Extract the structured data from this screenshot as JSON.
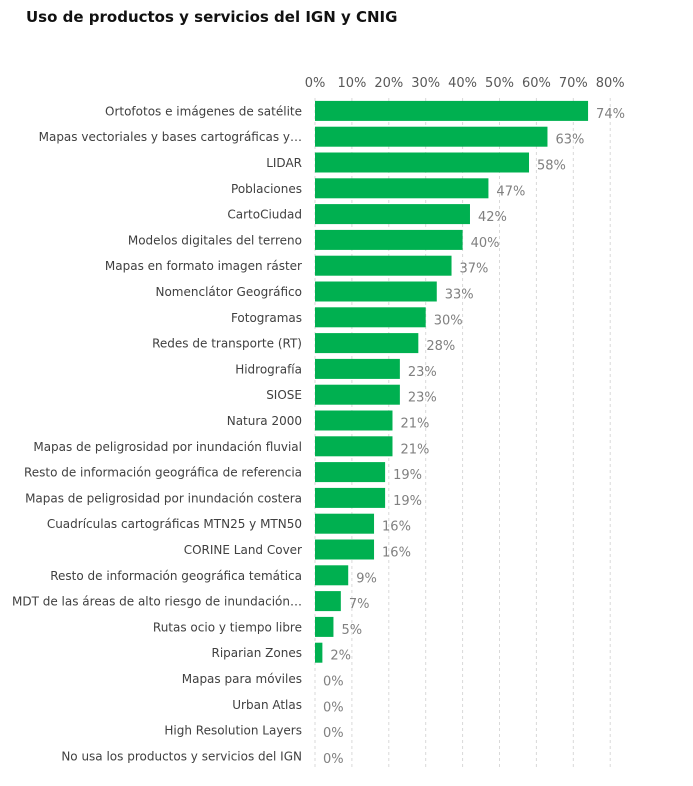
{
  "chart_data": {
    "type": "bar",
    "orientation": "horizontal",
    "title": "Uso de productos y servicios del IGN y CNIG",
    "xlim": [
      0,
      80
    ],
    "ticks": [
      "0%",
      "10%",
      "20%",
      "30%",
      "40%",
      "50%",
      "60%",
      "70%",
      "80%"
    ],
    "tick_values": [
      0,
      10,
      20,
      30,
      40,
      50,
      60,
      70,
      80
    ],
    "grid": true,
    "axis_position": "top",
    "bar_color": "#00b050",
    "categories": [
      "Ortofotos e imágenes de satélite",
      "Mapas vectoriales y bases cartográficas y…",
      "LIDAR",
      "Poblaciones",
      "CartoCiudad",
      "Modelos digitales del terreno",
      "Mapas en formato imagen ráster",
      "Nomenclátor Geográfico",
      "Fotogramas",
      "Redes de transporte (RT)",
      "Hidrografía",
      "SIOSE",
      "Natura 2000",
      "Mapas de peligrosidad por inundación fluvial",
      "Resto de información geográfica de referencia",
      "Mapas de peligrosidad por inundación costera",
      "Cuadrículas cartográficas MTN25 y MTN50",
      "CORINE Land Cover",
      "Resto de información geográfica temática",
      "MDT de las áreas de alto riesgo de inundación…",
      "Rutas ocio y tiempo libre",
      "Riparian Zones",
      "Mapas para móviles",
      "Urban Atlas",
      "High Resolution Layers",
      "No usa los productos y servicios del IGN"
    ],
    "values": [
      74,
      63,
      58,
      47,
      42,
      40,
      37,
      33,
      30,
      28,
      23,
      23,
      21,
      21,
      19,
      19,
      16,
      16,
      9,
      7,
      5,
      2,
      0,
      0,
      0,
      0
    ],
    "value_labels": [
      "74%",
      "63%",
      "58%",
      "47%",
      "42%",
      "40%",
      "37%",
      "33%",
      "30%",
      "28%",
      "23%",
      "23%",
      "21%",
      "21%",
      "19%",
      "19%",
      "16%",
      "16%",
      "9%",
      "7%",
      "5%",
      "2%",
      "0%",
      "0%",
      "0%",
      "0%"
    ]
  }
}
